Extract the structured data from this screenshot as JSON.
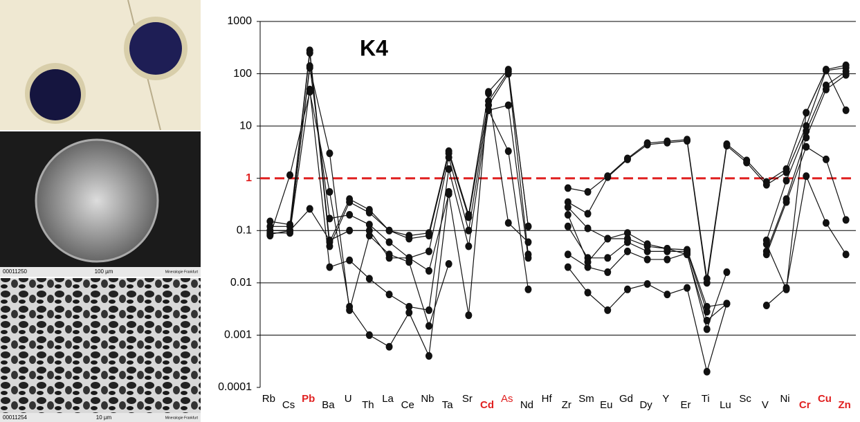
{
  "images": {
    "captions": [
      {
        "id": "00011250",
        "scale": "100 µm",
        "logo": "Mineralogie Frankfurt"
      },
      {
        "id": "00011254",
        "scale": "10 µm",
        "logo": "Mineralogie Frankfurt"
      }
    ]
  },
  "chart_data": {
    "type": "line",
    "annotation": "K4",
    "log": true,
    "categories": [
      "Rb",
      "Cs",
      "Pb",
      "Ba",
      "U",
      "Th",
      "La",
      "Ce",
      "Nb",
      "Ta",
      "Sr",
      "Cd",
      "As",
      "Nd",
      "Hf",
      "Zr",
      "Sm",
      "Eu",
      "Gd",
      "Dy",
      "Y",
      "Er",
      "Ti",
      "Lu",
      "Sc",
      "V",
      "Ni",
      "Cr",
      "Cu",
      "Zn"
    ],
    "category_colors": [
      "#000",
      "#000",
      "#e02020",
      "#000",
      "#000",
      "#000",
      "#000",
      "#000",
      "#000",
      "#000",
      "#000",
      "#e02020",
      "#e02020",
      "#000",
      "#000",
      "#000",
      "#000",
      "#000",
      "#000",
      "#000",
      "#000",
      "#000",
      "#000",
      "#000",
      "#000",
      "#000",
      "#000",
      "#e02020",
      "#e02020",
      "#e02020"
    ],
    "category_bold": [
      false,
      false,
      true,
      false,
      false,
      false,
      false,
      false,
      false,
      false,
      false,
      true,
      false,
      false,
      false,
      false,
      false,
      false,
      false,
      false,
      false,
      false,
      false,
      false,
      false,
      false,
      false,
      true,
      true,
      true
    ],
    "ylim": [
      0.0001,
      1000
    ],
    "yticks": [
      0.0001,
      0.001,
      0.01,
      0.1,
      1,
      10,
      100,
      1000
    ],
    "grid": true,
    "reference_line": {
      "value": 1,
      "color": "#e02020"
    },
    "series": [
      {
        "color": "#111",
        "values": [
          0.15,
          0.13,
          280,
          0.06,
          0.4,
          0.25,
          0.1,
          0.08,
          0.09,
          3.3,
          0.2,
          45,
          120,
          0.12,
          null,
          0.65,
          0.55,
          1.1,
          2.4,
          4.7,
          5.1,
          5.5,
          0.012,
          4.5,
          2.2,
          0.85,
          1.5,
          18,
          120,
          145
        ]
      },
      {
        "color": "#111",
        "values": [
          0.12,
          0.12,
          250,
          0.05,
          0.35,
          0.22,
          0.1,
          0.07,
          0.08,
          3.0,
          0.18,
          30,
          110,
          0.12,
          null,
          0.35,
          0.21,
          1.05,
          2.3,
          4.4,
          4.8,
          5.2,
          0.01,
          4.2,
          2.0,
          0.75,
          1.3,
          10,
          115,
          130
        ]
      },
      {
        "color": "#111",
        "values": [
          0.1,
          0.1,
          140,
          0.17,
          0.2,
          0.13,
          0.06,
          0.03,
          0.04,
          2.5,
          0.1,
          25,
          100,
          0.035,
          null,
          0.28,
          0.11,
          0.07,
          0.09,
          0.055,
          0.045,
          0.043,
          0.0035,
          0.004,
          null,
          0.065,
          0.9,
          8,
          60,
          110
        ]
      },
      {
        "color": "#111",
        "values": [
          0.09,
          0.09,
          50,
          0.02,
          0.027,
          0.012,
          0.006,
          0.0035,
          0.003,
          1.5,
          0.05,
          20,
          25,
          0.03,
          null,
          0.12,
          0.03,
          0.03,
          0.06,
          0.04,
          0.04,
          0.04,
          0.0028,
          null,
          null,
          0.04,
          0.4,
          6,
          50,
          95
        ]
      },
      {
        "color": "#111",
        "values": [
          0.08,
          1.15,
          45,
          0.55,
          0.0035,
          0.001,
          0.0006,
          0.0027,
          0.0004,
          0.55,
          null,
          null,
          null,
          null,
          null,
          0.035,
          0.02,
          0.016,
          0.04,
          0.028,
          0.028,
          0.037,
          0.0013,
          0.016,
          null,
          0.035,
          0.35,
          4,
          2.3,
          0.16
        ]
      },
      {
        "color": "#111",
        "values": [
          0.1,
          0.1,
          130,
          3.0,
          0.003,
          0.08,
          0.035,
          0.025,
          0.0015,
          0.023,
          null,
          20,
          3.3,
          0.0075,
          null,
          0.02,
          0.0065,
          0.003,
          0.0075,
          0.0095,
          0.006,
          0.008,
          0.0002,
          0.004,
          null,
          0.0037,
          0.008,
          1.1,
          0.14,
          0.035
        ]
      },
      {
        "color": "#111",
        "values": [
          0.085,
          0.1,
          0.26,
          0.065,
          0.1,
          0.1,
          0.03,
          0.03,
          0.017,
          0.5,
          0.0024,
          42,
          0.14,
          0.06,
          null,
          0.2,
          0.025,
          0.07,
          0.07,
          0.05,
          0.045,
          0.035,
          0.0019,
          0.004,
          null,
          0.055,
          0.0075,
          18,
          120,
          20
        ]
      }
    ]
  }
}
